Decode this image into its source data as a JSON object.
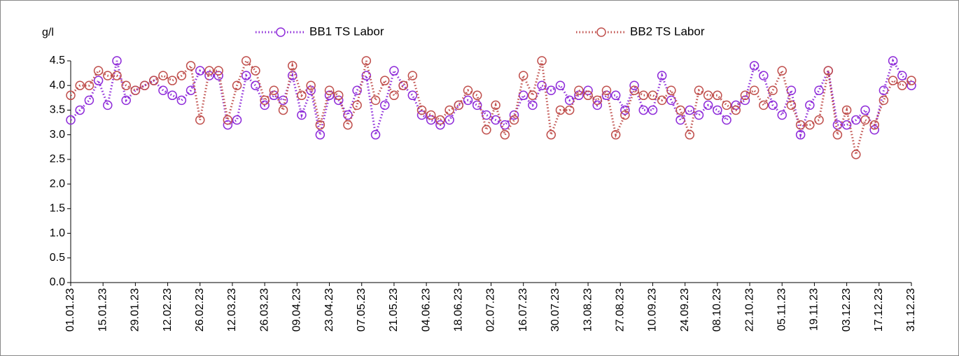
{
  "chart_data": {
    "type": "line",
    "y_label": "g/l",
    "x": [
      "01.01.23",
      "05.01.23",
      "09.01.23",
      "13.01.23",
      "17.01.23",
      "21.01.23",
      "25.01.23",
      "29.01.23",
      "02.02.23",
      "06.02.23",
      "10.02.23",
      "14.02.23",
      "18.02.23",
      "22.02.23",
      "26.02.23",
      "02.03.23",
      "06.03.23",
      "10.03.23",
      "14.03.23",
      "18.03.23",
      "22.03.23",
      "26.03.23",
      "30.03.23",
      "03.04.23",
      "07.04.23",
      "11.04.23",
      "15.04.23",
      "19.04.23",
      "23.04.23",
      "27.04.23",
      "01.05.23",
      "05.05.23",
      "09.05.23",
      "13.05.23",
      "17.05.23",
      "21.05.23",
      "25.05.23",
      "29.05.23",
      "02.06.23",
      "06.06.23",
      "10.06.23",
      "14.06.23",
      "18.06.23",
      "22.06.23",
      "26.06.23",
      "30.06.23",
      "04.07.23",
      "08.07.23",
      "12.07.23",
      "16.07.23",
      "20.07.23",
      "24.07.23",
      "28.07.23",
      "01.08.23",
      "05.08.23",
      "09.08.23",
      "13.08.23",
      "17.08.23",
      "21.08.23",
      "25.08.23",
      "29.08.23",
      "02.09.23",
      "06.09.23",
      "10.09.23",
      "14.09.23",
      "18.09.23",
      "22.09.23",
      "26.09.23",
      "30.09.23",
      "04.10.23",
      "08.10.23",
      "12.10.23",
      "16.10.23",
      "20.10.23",
      "24.10.23",
      "28.10.23",
      "01.11.23",
      "05.11.23",
      "09.11.23",
      "13.11.23",
      "17.11.23",
      "21.11.23",
      "25.11.23",
      "29.11.23",
      "03.12.23",
      "07.12.23",
      "11.12.23",
      "15.12.23",
      "19.12.23",
      "23.12.23",
      "27.12.23",
      "31.12.23"
    ],
    "series": [
      {
        "name": "BB1 TS Labor",
        "color": "#8e2bd9",
        "values": [
          3.3,
          3.5,
          3.7,
          4.1,
          3.6,
          4.5,
          3.7,
          3.9,
          4.0,
          4.1,
          3.9,
          3.8,
          3.7,
          3.9,
          4.3,
          4.2,
          4.2,
          3.2,
          3.3,
          4.2,
          4.0,
          3.6,
          3.8,
          3.7,
          4.2,
          3.4,
          3.9,
          3.0,
          3.8,
          3.7,
          3.4,
          3.9,
          4.2,
          3.0,
          3.6,
          4.3,
          4.0,
          3.8,
          3.4,
          3.3,
          3.2,
          3.3,
          3.6,
          3.7,
          3.6,
          3.4,
          3.3,
          3.2,
          3.4,
          3.8,
          3.6,
          4.0,
          3.9,
          4.0,
          3.7,
          3.8,
          3.9,
          3.6,
          3.8,
          3.8,
          3.5,
          4.0,
          3.5,
          3.5,
          4.2,
          3.7,
          3.3,
          3.5,
          3.4,
          3.6,
          3.5,
          3.3,
          3.6,
          3.7,
          4.4,
          4.2,
          3.6,
          3.4,
          3.9,
          3.0,
          3.6,
          3.9,
          4.3,
          3.2,
          3.2,
          3.3,
          3.5,
          3.1,
          3.9,
          4.5,
          4.2,
          4.0
        ]
      },
      {
        "name": "BB2 TS Labor",
        "color": "#c0504d",
        "values": [
          3.8,
          4.0,
          4.0,
          4.3,
          4.2,
          4.2,
          4.0,
          3.9,
          4.0,
          4.1,
          4.2,
          4.1,
          4.2,
          4.4,
          3.3,
          4.3,
          4.3,
          3.3,
          4.0,
          4.5,
          4.3,
          3.7,
          3.9,
          3.5,
          4.4,
          3.8,
          4.0,
          3.2,
          3.9,
          3.8,
          3.2,
          3.6,
          4.5,
          3.7,
          4.1,
          3.8,
          4.0,
          4.2,
          3.5,
          3.4,
          3.3,
          3.5,
          3.6,
          3.9,
          3.8,
          3.1,
          3.6,
          3.0,
          3.3,
          4.2,
          3.8,
          4.5,
          3.0,
          3.5,
          3.5,
          3.9,
          3.8,
          3.7,
          3.9,
          3.0,
          3.4,
          3.9,
          3.8,
          3.8,
          3.7,
          3.9,
          3.5,
          3.0,
          3.9,
          3.8,
          3.8,
          3.6,
          3.5,
          3.8,
          3.9,
          3.6,
          3.9,
          4.3,
          3.6,
          3.2,
          3.2,
          3.3,
          4.3,
          3.0,
          3.5,
          2.6,
          3.3,
          3.2,
          3.7,
          4.1,
          4.0,
          4.1
        ]
      }
    ],
    "xlim": [
      "01.01.23",
      "31.12.23"
    ],
    "xticks": [
      "01.01.23",
      "15.01.23",
      "29.01.23",
      "12.02.23",
      "26.02.23",
      "12.03.23",
      "26.03.23",
      "09.04.23",
      "23.04.23",
      "07.05.23",
      "21.05.23",
      "04.06.23",
      "18.06.23",
      "02.07.23",
      "16.07.23",
      "30.07.23",
      "13.08.23",
      "27.08.23",
      "10.09.23",
      "24.09.23",
      "08.10.23",
      "22.10.23",
      "05.11.23",
      "19.11.23",
      "03.12.23",
      "17.12.23",
      "31.12.23"
    ],
    "ylim": [
      0,
      4.5
    ],
    "yticks": [
      {
        "value": 0,
        "label": "0.0"
      },
      0.5,
      {
        "value": 1,
        "label": "1.0"
      },
      1.5,
      {
        "value": 2,
        "label": "2.0"
      },
      2.5,
      {
        "value": 3,
        "label": "3.0"
      },
      3.5,
      {
        "value": 4,
        "label": "4.0"
      },
      4.5
    ]
  }
}
